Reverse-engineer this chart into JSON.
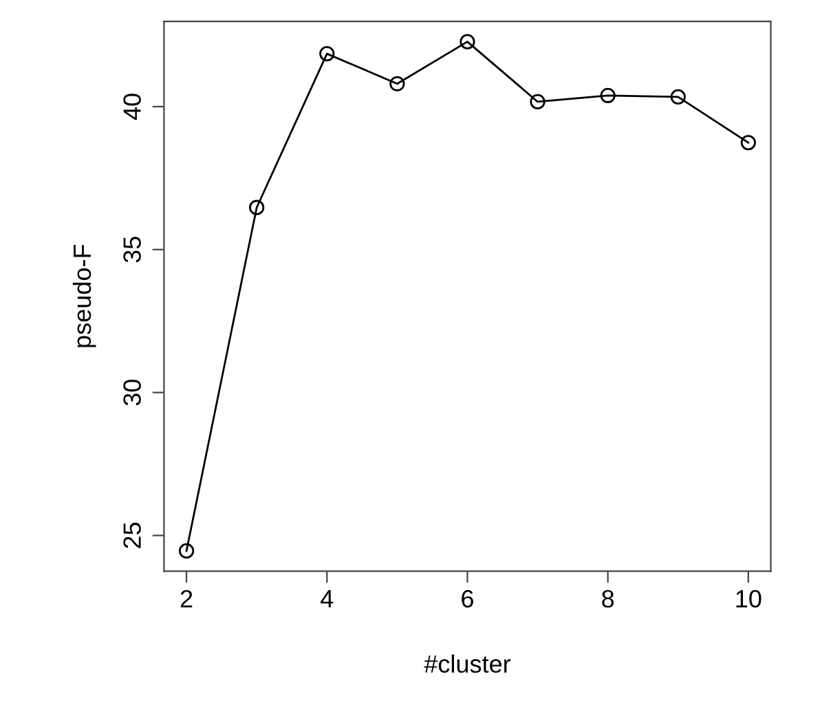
{
  "chart_data": {
    "type": "line",
    "xlabel": "#cluster",
    "ylabel": "pseudo-F",
    "x": [
      2,
      3,
      4,
      5,
      6,
      7,
      8,
      9,
      10
    ],
    "series": [
      {
        "color": "#000000",
        "values": [
          24.46,
          36.47,
          41.85,
          40.8,
          42.27,
          40.17,
          40.39,
          40.34,
          38.74
        ]
      }
    ],
    "xlim": [
      1.68,
      10.32
    ],
    "ylim": [
      23.75,
      42.98
    ],
    "xticks": [
      2,
      4,
      6,
      8,
      10
    ],
    "yticks": [
      25,
      30,
      35,
      40
    ],
    "marker": "circle",
    "line_style": "solid",
    "grid": false,
    "legend": false
  }
}
